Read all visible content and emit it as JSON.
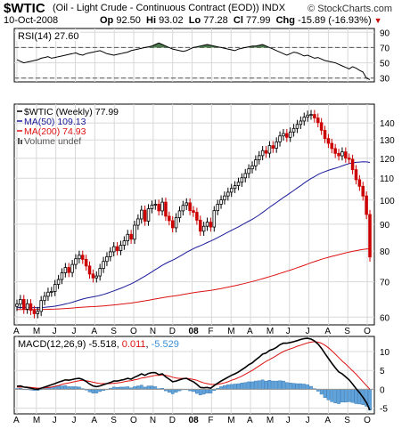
{
  "header": {
    "symbol": "$WTIC",
    "description": "(Oil - Light Crude - Continuous Contract (EOD)) INDX",
    "brand": "© StockCharts.com",
    "date": "10-Oct-2008",
    "open_label": "Op",
    "open": "92.50",
    "high_label": "Hi",
    "high": "93.02",
    "low_label": "Lo",
    "low": "77.28",
    "close_label": "Cl",
    "close": "77.99",
    "change_label": "Chg",
    "change": "-15.89 (-16.93%)"
  },
  "chart_data": [
    {
      "type": "line",
      "name": "RSI panel",
      "legend": "RSI(14) 27.60",
      "y_ticks": [
        30,
        50,
        70,
        90
      ],
      "y_tick_labels": [
        "30",
        "50",
        "70",
        "90"
      ],
      "ylim": [
        25,
        95
      ],
      "reference_lines": [
        30,
        70
      ],
      "values": [
        54,
        52,
        50,
        51,
        52,
        53,
        54,
        56,
        57,
        58,
        56,
        57,
        58,
        59,
        60,
        61,
        62,
        63,
        61,
        60,
        62,
        63,
        64,
        65,
        66,
        64,
        62,
        61,
        60,
        61,
        62,
        63,
        64,
        66,
        67,
        68,
        69,
        70,
        71,
        72,
        74,
        76,
        74,
        72,
        70,
        68,
        67,
        66,
        65,
        66,
        68,
        70,
        71,
        72,
        73,
        74,
        73,
        72,
        71,
        70,
        69,
        68,
        67,
        66,
        68,
        69,
        70,
        71,
        72,
        72,
        73,
        74,
        72,
        70,
        68,
        66,
        64,
        62,
        60,
        62,
        64,
        63,
        61,
        59,
        60,
        58,
        56,
        57,
        55,
        53,
        52,
        51,
        50,
        48,
        46,
        44,
        42,
        45,
        43,
        40,
        38,
        30,
        28
      ]
    },
    {
      "type": "candlestick",
      "name": "Price panel",
      "legend": [
        {
          "label": "$WTIC (Weekly) 77.99",
          "color": "#000000"
        },
        {
          "label": "MA(50) 109.13",
          "color": "#1a1a99"
        },
        {
          "label": "MA(200) 74.93",
          "color": "#dd1111"
        },
        {
          "label": "Volume undef",
          "color": "#555555"
        }
      ],
      "scale": "log",
      "y_ticks": [
        60,
        70,
        80,
        90,
        100,
        110,
        120,
        130,
        140
      ],
      "y_tick_labels": [
        "60",
        "70",
        "80",
        "90",
        "100",
        "110",
        "120",
        "130",
        "140"
      ],
      "ylim": [
        58,
        152
      ],
      "closes": [
        63.5,
        64.8,
        62.1,
        63.6,
        61.8,
        60.9,
        61.5,
        64.5,
        65.7,
        66.9,
        67.1,
        69.2,
        70.7,
        72.8,
        74.5,
        72.9,
        75.5,
        77.4,
        78.6,
        77.2,
        75.0,
        72.4,
        71.2,
        71.8,
        74.2,
        76.5,
        78.1,
        79.8,
        81.6,
        80.2,
        82.1,
        83.7,
        86.1,
        84.3,
        89.6,
        92.1,
        95.7,
        91.2,
        96.3,
        97.8,
        98.2,
        95.4,
        99.1,
        93.2,
        91.4,
        88.6,
        92.6,
        95.4,
        97.7,
        98.8,
        95.5,
        94.8,
        91.6,
        87.3,
        89.2,
        90.8,
        88.9,
        95.5,
        98.2,
        100.1,
        101.8,
        103.5,
        105.2,
        106.5,
        108.1,
        110.2,
        112.3,
        114.6,
        116.1,
        119.2,
        121.4,
        124.1,
        122.7,
        126.8,
        125.4,
        128.9,
        132.3,
        133.7,
        131.5,
        134.6,
        136.7,
        139.1,
        141.2,
        143.6,
        144.9,
        145.3,
        143.1,
        140.2,
        135.6,
        130.8,
        128.1,
        125.2,
        122.6,
        121.3,
        123.4,
        120.1,
        119.5,
        114.2,
        109.3,
        106.2,
        101.8,
        93.9,
        77.99
      ]
    },
    {
      "type": "line",
      "name": "MACD panel",
      "legend": [
        {
          "label": "MACD(12,26,9)",
          "value": "-5.518",
          "color": "#000000"
        },
        {
          "label": "",
          "value": "0.011",
          "color": "#dd1111"
        },
        {
          "label": "",
          "value": "-5.529",
          "color": "#3a8fd8"
        }
      ],
      "y_ticks": [
        -5,
        0,
        5,
        10
      ],
      "y_tick_labels": [
        "-5",
        "0",
        "5",
        "10"
      ],
      "ylim": [
        -6.5,
        14
      ],
      "macd": [
        0.8,
        0.9,
        0.6,
        0.5,
        0.3,
        0.1,
        0.0,
        0.3,
        0.6,
        0.9,
        1.2,
        1.5,
        1.9,
        2.2,
        2.5,
        2.4,
        2.6,
        2.8,
        2.9,
        2.6,
        2.1,
        1.4,
        0.9,
        0.7,
        0.9,
        1.2,
        1.5,
        1.8,
        2.2,
        2.2,
        2.4,
        2.6,
        2.9,
        2.7,
        3.2,
        3.6,
        4.1,
        3.7,
        4.2,
        4.4,
        4.4,
        3.9,
        4.1,
        3.3,
        2.7,
        2.0,
        2.2,
        2.5,
        2.8,
        2.9,
        2.4,
        2.0,
        1.3,
        0.5,
        0.4,
        0.5,
        0.3,
        1.0,
        1.6,
        2.2,
        2.7,
        3.2,
        3.7,
        4.1,
        4.6,
        5.2,
        5.8,
        6.5,
        7.0,
        7.8,
        8.5,
        9.3,
        9.6,
        10.3,
        10.6,
        11.1,
        11.8,
        12.2,
        12.2,
        12.4,
        12.6,
        12.9,
        13.2,
        13.4,
        13.5,
        13.3,
        12.8,
        12.0,
        10.9,
        9.5,
        8.2,
        6.9,
        5.7,
        4.6,
        4.1,
        3.3,
        2.5,
        1.4,
        0.2,
        -0.9,
        -2.1,
        -3.5,
        -5.518
      ],
      "signal": [
        0.6,
        0.6,
        0.6,
        0.6,
        0.5,
        0.4,
        0.3,
        0.3,
        0.4,
        0.5,
        0.6,
        0.8,
        1.0,
        1.3,
        1.5,
        1.7,
        1.9,
        2.1,
        2.3,
        2.4,
        2.3,
        2.1,
        1.9,
        1.7,
        1.5,
        1.5,
        1.5,
        1.5,
        1.6,
        1.7,
        1.8,
        2.0,
        2.2,
        2.3,
        2.5,
        2.7,
        3.0,
        3.1,
        3.3,
        3.5,
        3.7,
        3.7,
        3.8,
        3.7,
        3.5,
        3.2,
        3.0,
        2.9,
        2.9,
        2.9,
        2.8,
        2.6,
        2.4,
        2.0,
        1.7,
        1.5,
        1.3,
        1.3,
        1.3,
        1.5,
        1.7,
        2.0,
        2.4,
        2.7,
        3.1,
        3.5,
        4.0,
        4.5,
        5.0,
        5.6,
        6.2,
        6.8,
        7.4,
        7.9,
        8.4,
        8.9,
        9.5,
        10.0,
        10.4,
        10.7,
        11.0,
        11.4,
        11.7,
        12.0,
        12.3,
        12.5,
        12.6,
        12.5,
        12.2,
        11.7,
        11.0,
        10.2,
        9.3,
        8.4,
        7.5,
        6.7,
        5.8,
        4.9,
        4.0,
        3.0,
        2.0,
        1.0,
        0.011
      ]
    }
  ],
  "x_axis": {
    "labels": [
      "A",
      "M",
      "J",
      "J",
      "A",
      "S",
      "O",
      "N",
      "D",
      "08",
      "F",
      "M",
      "A",
      "M",
      "J",
      "J",
      "A",
      "S",
      "O"
    ]
  }
}
